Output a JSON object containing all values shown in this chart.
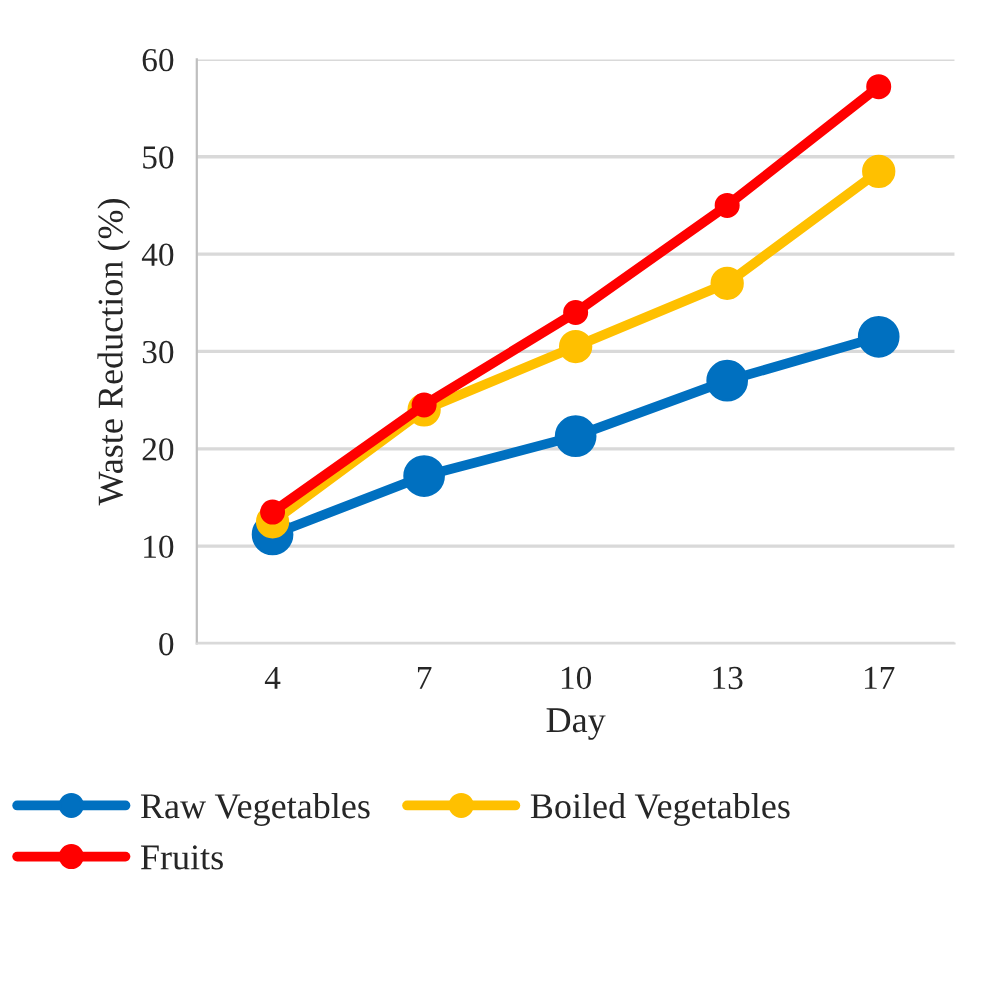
{
  "chart_data": {
    "type": "line",
    "xlabel": "Day",
    "ylabel": "Waste Reduction (%)",
    "categories": [
      "4",
      "7",
      "10",
      "13",
      "17"
    ],
    "series": [
      {
        "name": "Raw Vegetables",
        "color": "#0070c0",
        "values": [
          11.2,
          17.2,
          21.3,
          27,
          31.5
        ]
      },
      {
        "name": "Boiled Vegetables",
        "color": "#ffc000",
        "values": [
          12.5,
          24,
          30.5,
          37,
          48.5
        ]
      },
      {
        "name": "Fruits",
        "color": "#ff0000",
        "values": [
          13.5,
          24.5,
          34,
          45,
          57.2
        ]
      }
    ],
    "ylim": [
      0,
      60
    ],
    "yticks": [
      0,
      10,
      20,
      30,
      40,
      50,
      60
    ],
    "grid": "y",
    "legend": "bottom",
    "marker": "circle",
    "line_style": "solid"
  }
}
